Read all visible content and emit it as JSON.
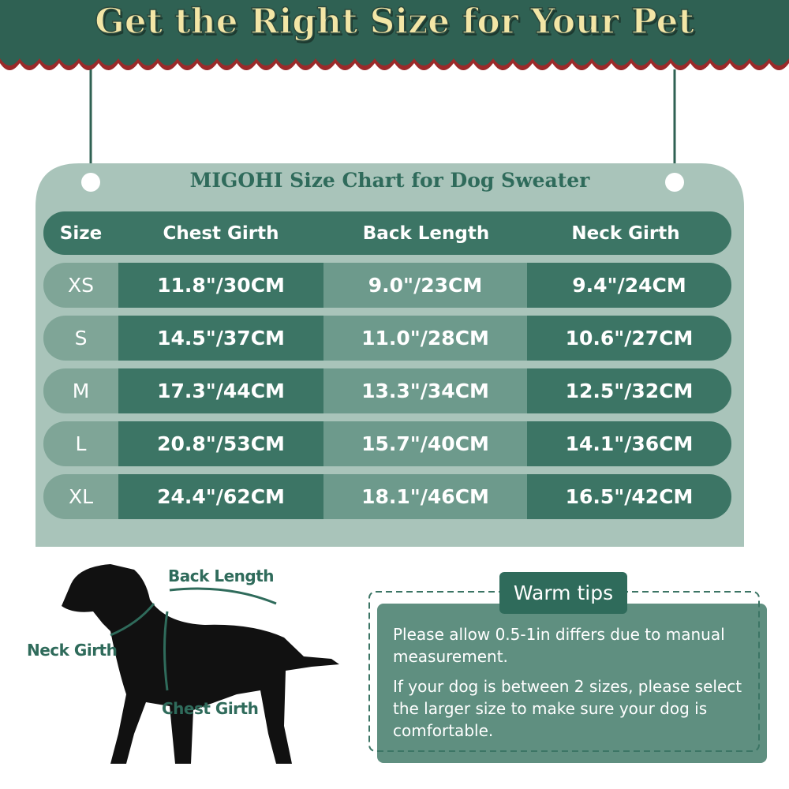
{
  "header": {
    "title": "Get the Right Size for Your Pet"
  },
  "table": {
    "title": "MIGOHI Size Chart for Dog Sweater",
    "columns": [
      "Size",
      "Chest Girth",
      "Back Length",
      "Neck Girth"
    ],
    "rows": [
      [
        "XS",
        "11.8\"/30CM",
        "9.0\"/23CM",
        "9.4\"/24CM"
      ],
      [
        "S",
        "14.5\"/37CM",
        "11.0\"/28CM",
        "10.6\"/27CM"
      ],
      [
        "M",
        "17.3\"/44CM",
        "13.3\"/34CM",
        "12.5\"/32CM"
      ],
      [
        "L",
        "20.8\"/53CM",
        "15.7\"/40CM",
        "14.1\"/36CM"
      ],
      [
        "XL",
        "24.4\"/62CM",
        "18.1\"/46CM",
        "16.5\"/42CM"
      ]
    ]
  },
  "diagram": {
    "back_length": "Back Length",
    "neck_girth": "Neck Girth",
    "chest_girth": "Chest Girth"
  },
  "tips": {
    "title": "Warm tips",
    "paragraphs": [
      "Please allow 0.5-1in differs due to manual measurement.",
      "If your dog is between 2 sizes, please select the larger size to make sure your dog is comfortable."
    ]
  }
}
